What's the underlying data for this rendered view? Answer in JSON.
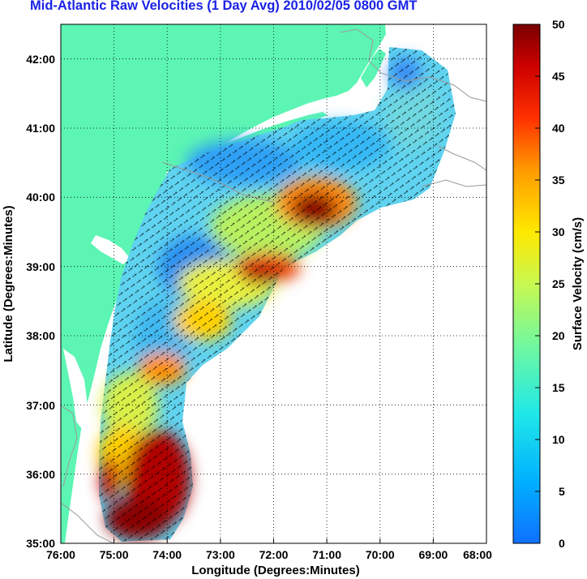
{
  "title": "Mid-Atlantic Raw Velocities (1 Day Avg) 2010/02/05 0800 GMT",
  "map": {
    "x_axis_label": "Longitude (Degrees:Minutes)",
    "y_axis_label": "Latitude (Degrees:Minutes)",
    "x_ticks": [
      "76:00",
      "75:00",
      "74:00",
      "73:00",
      "72:00",
      "71:00",
      "70:00",
      "69:00",
      "68:00"
    ],
    "y_ticks": [
      "42:00",
      "41:00",
      "40:00",
      "39:00",
      "38:00",
      "37:00",
      "36:00",
      "35:00"
    ],
    "lon_range": [
      -76,
      -68
    ],
    "lat_range": [
      35,
      42.5
    ],
    "grid": "dotted",
    "colors": {
      "land": "#5cf5b4",
      "title": "#1a22e6",
      "coast_contours": "#9a9a9a"
    }
  },
  "colorbar": {
    "label": "Surface Velocity (cm/s)",
    "ticks": [
      "50",
      "45",
      "40",
      "35",
      "30",
      "25",
      "20",
      "15",
      "10",
      "5",
      "0"
    ],
    "range": [
      0,
      50
    ],
    "colormap": "jet"
  }
}
